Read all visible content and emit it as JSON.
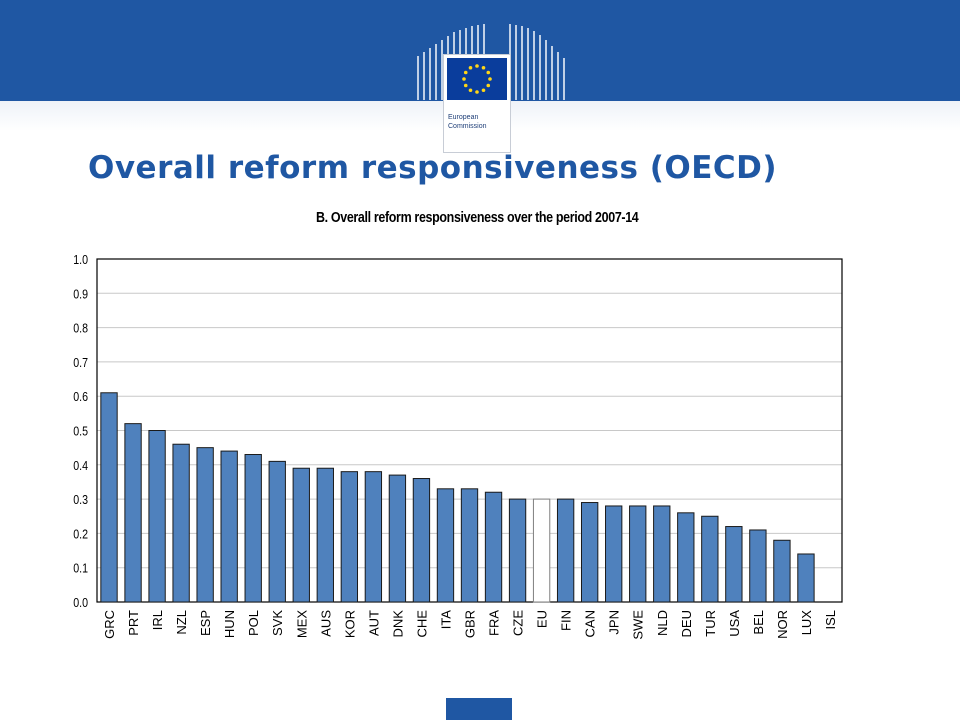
{
  "slide": {
    "title": "Overall reform responsiveness (OECD)",
    "logo": {
      "line1": "European",
      "line2": "Commission"
    },
    "colors": {
      "brand_blue": "#1f57a3",
      "bar_fill": "#4f81bd",
      "highlight_fill": "#ffffff"
    }
  },
  "chart_data": {
    "type": "bar",
    "title": "B. Overall reform responsiveness over the period 2007-14",
    "xlabel": "",
    "ylabel": "",
    "ylim": [
      0.0,
      1.0
    ],
    "yticks": [
      "0.0",
      "0.1",
      "0.2",
      "0.3",
      "0.4",
      "0.5",
      "0.6",
      "0.7",
      "0.8",
      "0.9",
      "1.0"
    ],
    "grid": true,
    "legend": "none",
    "categories": [
      "GRC",
      "PRT",
      "IRL",
      "NZL",
      "ESP",
      "HUN",
      "POL",
      "SVK",
      "MEX",
      "AUS",
      "KOR",
      "AUT",
      "DNK",
      "CHE",
      "ITA",
      "GBR",
      "FRA",
      "CZE",
      "EU",
      "FIN",
      "CAN",
      "JPN",
      "SWE",
      "NLD",
      "DEU",
      "TUR",
      "USA",
      "BEL",
      "NOR",
      "LUX",
      "ISL"
    ],
    "values": [
      0.61,
      0.52,
      0.5,
      0.46,
      0.45,
      0.44,
      0.43,
      0.41,
      0.39,
      0.39,
      0.38,
      0.38,
      0.37,
      0.36,
      0.33,
      0.33,
      0.32,
      0.3,
      0.3,
      0.3,
      0.29,
      0.28,
      0.28,
      0.28,
      0.26,
      0.25,
      0.22,
      0.21,
      0.18,
      0.14,
      0.0
    ],
    "highlight": [
      "EU"
    ]
  }
}
